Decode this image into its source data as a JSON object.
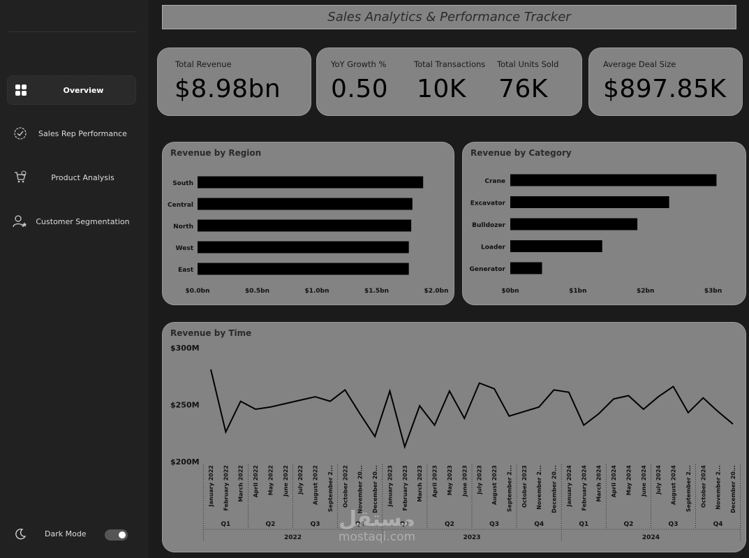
{
  "header": {
    "title": "Sales Analytics & Performance Tracker"
  },
  "sidebar": {
    "items": [
      {
        "label": "Overview",
        "icon": "grid-icon",
        "active": true
      },
      {
        "label": "Sales Rep Performance",
        "icon": "check-circle-icon",
        "active": false
      },
      {
        "label": "Product Analysis",
        "icon": "cart-icon",
        "active": false
      },
      {
        "label": "Customer Segmentation",
        "icon": "user-star-icon",
        "active": false
      }
    ],
    "dark_mode_label": "Dark Mode",
    "dark_mode_on": true
  },
  "kpis": {
    "total_revenue": {
      "label": "Total Revenue",
      "value": "$8.98bn"
    },
    "yoy_growth": {
      "label": "YoY Growth %",
      "value": "0.50"
    },
    "total_transactions": {
      "label": "Total Transactions",
      "value": "10K"
    },
    "total_units": {
      "label": "Total Units Sold",
      "value": "76K"
    },
    "avg_deal": {
      "label": "Average Deal Size",
      "value": "$897.85K"
    }
  },
  "watermark": {
    "text_ar": "مستقل",
    "text": "mostaqi.com"
  },
  "colors": {
    "background": "#1b1b1b",
    "sidebar": "#212121",
    "card": "#838383",
    "bar": "#000000"
  },
  "chart_data": [
    {
      "type": "bar",
      "orientation": "horizontal",
      "title": "Revenue by Region",
      "categories": [
        "South",
        "Central",
        "North",
        "West",
        "East"
      ],
      "values": [
        1.89,
        1.8,
        1.79,
        1.77,
        1.77
      ],
      "unit": "bn",
      "xlim": [
        0,
        2.0
      ],
      "xticks": [
        "$0.0bn",
        "$0.5bn",
        "$1.0bn",
        "$1.5bn",
        "$2.0bn"
      ],
      "xtick_values": [
        0,
        0.5,
        1.0,
        1.5,
        2.0
      ]
    },
    {
      "type": "bar",
      "orientation": "horizontal",
      "title": "Revenue by Category",
      "categories": [
        "Crane",
        "Excavator",
        "Bulldozer",
        "Loader",
        "Generator"
      ],
      "values": [
        3.05,
        2.35,
        1.88,
        1.36,
        0.47
      ],
      "unit": "bn",
      "xlim": [
        0,
        3.5
      ],
      "xticks": [
        "$0bn",
        "$1bn",
        "$2bn",
        "$3bn"
      ],
      "xtick_values": [
        0,
        1,
        2,
        3
      ]
    },
    {
      "type": "line",
      "title": "Revenue by Time",
      "ylabel_ticks": [
        "$300M",
        "$250M",
        "$200M"
      ],
      "ytick_values": [
        300,
        250,
        200
      ],
      "ylim": [
        200,
        300
      ],
      "x": [
        "January 2022",
        "February 2022",
        "March 2022",
        "April 2022",
        "May 2022",
        "June 2022",
        "July 2022",
        "August 2022",
        "September 2...",
        "October 2022",
        "November 20...",
        "December 20...",
        "January 2023",
        "February 2023",
        "March 2023",
        "April 2023",
        "May 2023",
        "June 2023",
        "July 2023",
        "August 2023",
        "September 2...",
        "October 2023",
        "November 2...",
        "December 20...",
        "January 2024",
        "February 2024",
        "March 2024",
        "April 2024",
        "May 2024",
        "June 2024",
        "July 2024",
        "August 2024",
        "September 2...",
        "October 2024",
        "November 2...",
        "December 20..."
      ],
      "values": [
        281,
        226,
        253,
        246,
        248,
        251,
        254,
        257,
        253,
        263,
        242,
        222,
        262,
        213,
        249,
        232,
        262,
        238,
        269,
        264,
        240,
        244,
        248,
        263,
        261,
        232,
        242,
        255,
        258,
        246,
        257,
        266,
        243,
        256,
        244,
        233
      ],
      "quarters": [
        "Q1",
        "Q2",
        "Q3",
        "Q4",
        "Q1",
        "Q2",
        "Q3",
        "Q4",
        "Q1",
        "Q2",
        "Q3",
        "Q4"
      ],
      "years": [
        "2022",
        "2023",
        "2024"
      ]
    }
  ]
}
